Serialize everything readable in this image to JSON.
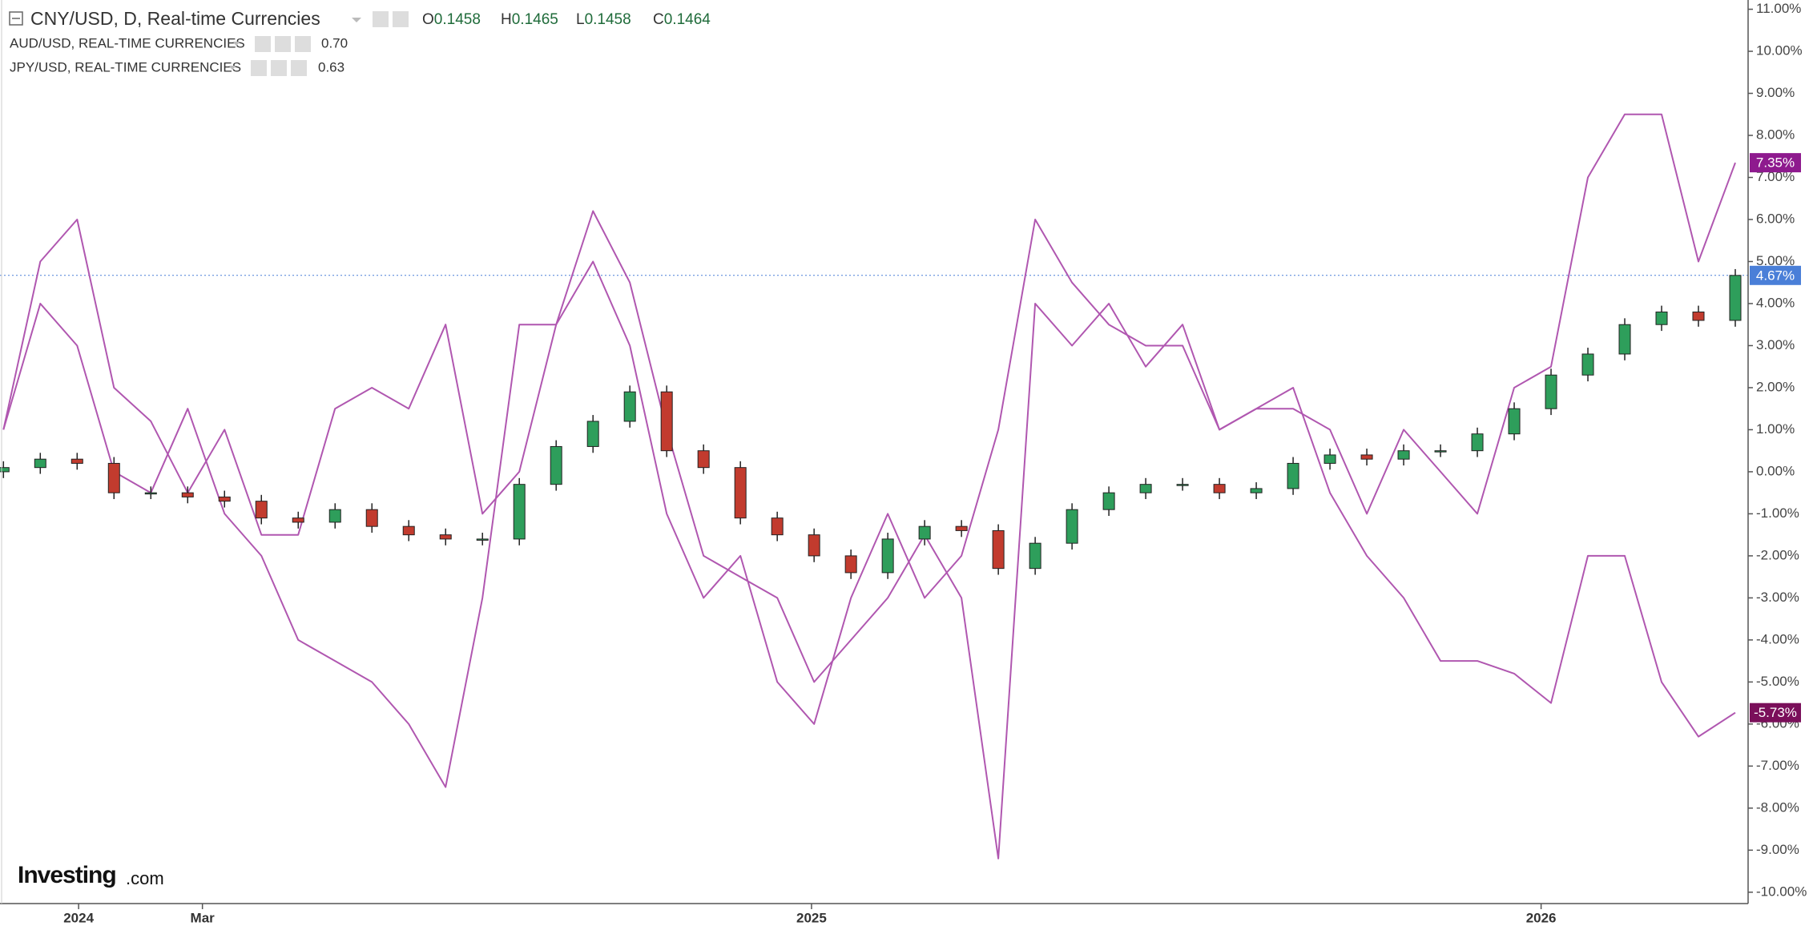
{
  "chart_data": {
    "type": "candlestick",
    "title": "CNY/USD, D, Real-time Currencies",
    "ohlc_readout": [
      {
        "label": "O",
        "value": 0.1458
      },
      {
        "label": "H",
        "value": 0.1465
      },
      {
        "label": "L",
        "value": 0.1458
      },
      {
        "label": "C",
        "value": 0.1464
      }
    ],
    "watermark": [
      "Investing",
      ".com"
    ],
    "xlim": [
      0,
      47
    ],
    "xticks": [
      {
        "value": 2.04,
        "label": "2024"
      },
      {
        "value": 5.4,
        "label": "Mar"
      },
      {
        "value": 21.93,
        "label": "2025"
      },
      {
        "value": 41.73,
        "label": "2026"
      }
    ],
    "ylim": [
      -10.27,
      11.22
    ],
    "yticks": [
      {
        "value": 11,
        "label": "11.00%"
      },
      {
        "value": 10,
        "label": "10.00%"
      },
      {
        "value": 9,
        "label": "9.00%"
      },
      {
        "value": 8,
        "label": "8.00%"
      },
      {
        "value": 7,
        "label": "7.00%"
      },
      {
        "value": 6,
        "label": "6.00%"
      },
      {
        "value": 5,
        "label": "5.00%"
      },
      {
        "value": 4,
        "label": "4.00%"
      },
      {
        "value": 3,
        "label": "3.00%"
      },
      {
        "value": 2,
        "label": "2.00%"
      },
      {
        "value": 1,
        "label": "1.00%"
      },
      {
        "value": 0,
        "label": "0.00%"
      },
      {
        "value": -1,
        "label": "-1.00%"
      },
      {
        "value": -2,
        "label": "-2.00%"
      },
      {
        "value": -3,
        "label": "-3.00%"
      },
      {
        "value": -4,
        "label": "-4.00%"
      },
      {
        "value": -5,
        "label": "-5.00%"
      },
      {
        "value": -6,
        "label": "-6.00%"
      },
      {
        "value": -7,
        "label": "-7.00%"
      },
      {
        "value": -8,
        "label": "-8.00%"
      },
      {
        "value": -9,
        "label": "-9.00%"
      },
      {
        "value": -10,
        "label": "-10.00%"
      }
    ],
    "candles": {
      "up_color": "#2e9e5b",
      "down_color": "#c23b2e",
      "last_value_label": "4.67%",
      "last_value": 4.67,
      "label_color": "#4a7fd8",
      "open": [
        0,
        0.1,
        0.3,
        0.2,
        -0.5,
        -0.5,
        -0.6,
        -0.7,
        -1.1,
        -1.2,
        -0.9,
        -1.3,
        -1.5,
        -1.6,
        -1.6,
        -0.3,
        0.6,
        1.2,
        1.9,
        0.5,
        0.1,
        -1.1,
        -1.5,
        -2.0,
        -2.4,
        -1.6,
        -1.3,
        -1.4,
        -2.3,
        -1.7,
        -0.9,
        -0.5,
        -0.3,
        -0.3,
        -0.5,
        -0.4,
        0.2,
        0.4,
        0.3,
        0.5,
        0.5,
        0.9,
        1.5,
        2.3,
        2.8,
        3.5,
        3.8,
        3.6
      ],
      "high": [
        0.25,
        0.45,
        0.45,
        0.35,
        -0.35,
        -0.35,
        -0.45,
        -0.55,
        -0.95,
        -0.75,
        -0.75,
        -1.15,
        -1.35,
        -1.45,
        -0.15,
        0.75,
        1.35,
        2.05,
        2.05,
        0.65,
        0.25,
        -0.95,
        -1.35,
        -1.85,
        -1.45,
        -1.15,
        -1.15,
        -1.25,
        -1.55,
        -0.75,
        -0.35,
        -0.15,
        -0.15,
        -0.15,
        -0.25,
        0.35,
        0.55,
        0.55,
        0.65,
        0.65,
        1.05,
        1.65,
        2.45,
        2.95,
        3.65,
        3.95,
        3.95,
        4.82
      ],
      "low": [
        -0.15,
        -0.05,
        0.05,
        -0.65,
        -0.65,
        -0.75,
        -0.85,
        -1.25,
        -1.35,
        -1.35,
        -1.45,
        -1.65,
        -1.75,
        -1.75,
        -1.75,
        -0.45,
        0.45,
        1.05,
        0.35,
        -0.05,
        -1.25,
        -1.65,
        -2.15,
        -2.55,
        -2.55,
        -1.75,
        -1.55,
        -2.45,
        -2.45,
        -1.85,
        -1.05,
        -0.65,
        -0.45,
        -0.65,
        -0.65,
        -0.55,
        0.05,
        0.15,
        0.15,
        0.35,
        0.35,
        0.75,
        1.35,
        2.15,
        2.65,
        3.35,
        3.45,
        3.45
      ],
      "close": [
        0.1,
        0.3,
        0.2,
        -0.5,
        -0.5,
        -0.6,
        -0.7,
        -1.1,
        -1.2,
        -0.9,
        -1.3,
        -1.5,
        -1.6,
        -1.6,
        -0.3,
        0.6,
        1.2,
        1.9,
        0.5,
        0.1,
        -1.1,
        -1.5,
        -2.0,
        -2.4,
        -1.6,
        -1.3,
        -1.4,
        -2.3,
        -1.7,
        -0.9,
        -0.5,
        -0.3,
        -0.3,
        -0.5,
        -0.4,
        0.2,
        0.4,
        0.3,
        0.5,
        0.5,
        0.9,
        1.5,
        2.3,
        2.8,
        3.5,
        3.8,
        3.6,
        4.67
      ]
    },
    "series": [
      {
        "name": "AUD/USD, REAL-TIME CURRENCIES",
        "legend_value": "0.70",
        "color": "#b057b0",
        "legend_color": "#9b3a9b",
        "label_color": "#8e1a8e",
        "last_value_label": "7.35%",
        "values": [
          1,
          5,
          6,
          2,
          1.2,
          -0.5,
          1,
          -1.5,
          -1.5,
          1.5,
          2,
          1.5,
          3.5,
          -1,
          0,
          3.5,
          6.2,
          4.5,
          1,
          -2,
          -2.5,
          -3,
          -5,
          -4,
          -3,
          -1.5,
          -3,
          -9.2,
          4,
          3,
          4,
          2.5,
          3.5,
          1,
          1.5,
          1.5,
          1,
          -1,
          1,
          0,
          -1,
          2,
          2.5,
          7,
          8.5,
          8.5,
          5,
          7.35
        ]
      },
      {
        "name": "JPY/USD, REAL-TIME CURRENCIES",
        "legend_value": "0.63",
        "color": "#b057b0",
        "legend_color": "#7c1060",
        "label_color": "#7a0f5a",
        "last_value_label": "-5.73%",
        "values": [
          1,
          4,
          3,
          0,
          -0.5,
          1.5,
          -1,
          -2,
          -4,
          -4.5,
          -5,
          -6,
          -7.5,
          -3,
          3.5,
          3.5,
          5,
          3,
          -1,
          -3,
          -2,
          -5,
          -6,
          -3,
          -1,
          -3,
          -2,
          1,
          6,
          4.5,
          3.5,
          3,
          3,
          1,
          1.5,
          2,
          -0.5,
          -2,
          -3,
          -4.5,
          -4.5,
          -4.8,
          -5.5,
          -2,
          -2,
          -5,
          -6.3,
          -5.73
        ]
      }
    ]
  }
}
